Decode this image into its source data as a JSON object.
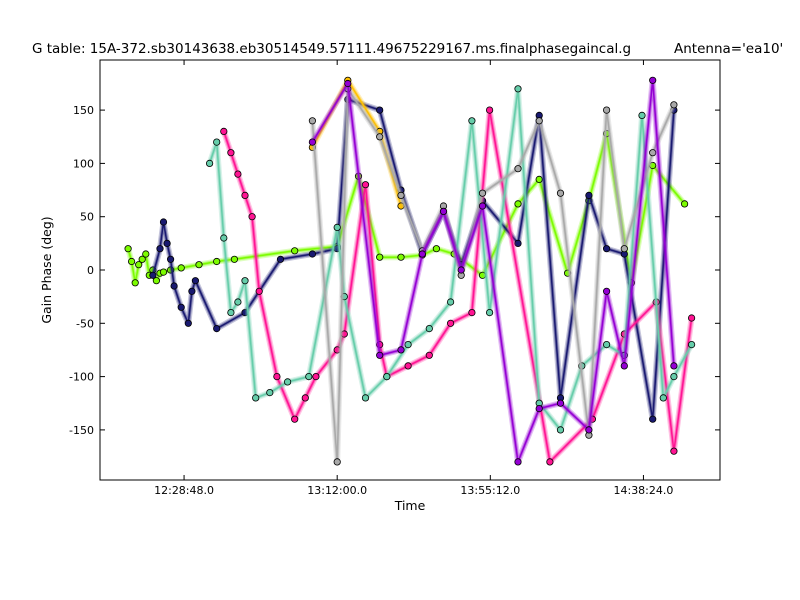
{
  "chart_data": {
    "type": "line",
    "title": "G table: 15A-372.sb30143638.eb30514549.57111.49675229167.ms.finalphasegaincal.g",
    "antenna_label": "Antenna='ea10'",
    "xlabel": "Time",
    "ylabel": "Gain Phase (deg)",
    "xlim": [
      "12:05:05.0",
      "15:00:00.0"
    ],
    "ylim": [
      -197,
      197
    ],
    "x_ticks": [
      "12:28:48.0",
      "13:12:00.0",
      "13:55:12.0",
      "14:38:24.0"
    ],
    "y_ticks": [
      -150,
      -100,
      -50,
      0,
      50,
      100,
      150
    ],
    "grid": false,
    "series": [
      {
        "color": "#7CFC00",
        "x": [
          "12:13:00",
          "12:14:00",
          "12:15:00",
          "12:16:00",
          "12:17:00",
          "12:18:00",
          "12:19:00",
          "12:20:00",
          "12:21:00",
          "12:22:00",
          "12:23:00",
          "12:25:00",
          "12:28:00",
          "12:33:00",
          "12:38:00",
          "12:43:00",
          "13:00:00",
          "13:12:00",
          "13:18:00",
          "13:24:00",
          "13:30:00",
          "13:36:00",
          "13:40:00",
          "13:45:00",
          "13:53:00",
          "14:03:00",
          "14:09:00",
          "14:17:00",
          "14:23:00",
          "14:28:00",
          "14:35:00",
          "14:41:00",
          "14:50:00"
        ],
        "y": [
          20,
          8,
          -12,
          5,
          10,
          15,
          -5,
          0,
          -10,
          -3,
          -2,
          0,
          2,
          5,
          8,
          10,
          18,
          22,
          88,
          12,
          12,
          14,
          20,
          15,
          -5,
          62,
          85,
          -3,
          65,
          128,
          -12,
          98,
          62
        ]
      },
      {
        "color": "#191970",
        "x": [
          "12:20:00",
          "12:22:00",
          "12:23:00",
          "12:24:00",
          "12:25:00",
          "12:26:00",
          "12:28:00",
          "12:30:00",
          "12:31:00",
          "12:32:00",
          "12:38:00",
          "12:46:00",
          "12:56:00",
          "13:05:00",
          "13:12:00",
          "13:15:00",
          "13:24:00",
          "13:30:00",
          "13:36:00",
          "13:42:00",
          "13:47:00",
          "13:53:00",
          "14:03:00",
          "14:09:00",
          "14:15:00",
          "14:23:00",
          "14:28:00",
          "14:33:00",
          "14:41:00",
          "14:47:00"
        ],
        "y": [
          -5,
          20,
          45,
          25,
          10,
          -15,
          -35,
          -50,
          -20,
          -10,
          -55,
          -40,
          10,
          15,
          20,
          160,
          150,
          75,
          15,
          55,
          5,
          65,
          25,
          145,
          -120,
          70,
          20,
          15,
          -140,
          150
        ]
      },
      {
        "color": "#FF1493",
        "x": [
          "12:40:00",
          "12:42:00",
          "12:44:00",
          "12:46:00",
          "12:48:00",
          "12:50:00",
          "12:55:00",
          "13:00:00",
          "13:03:00",
          "13:06:00",
          "13:12:00",
          "13:14:00",
          "13:20:00",
          "13:24:00",
          "13:26:00",
          "13:32:00",
          "13:38:00",
          "13:44:00",
          "13:50:00",
          "13:55:00",
          "14:12:00",
          "14:24:00",
          "14:33:00",
          "14:42:00",
          "14:47:00",
          "14:52:00"
        ],
        "y": [
          130,
          110,
          90,
          70,
          50,
          -20,
          -100,
          -140,
          -120,
          -100,
          -75,
          -60,
          80,
          -70,
          -100,
          -90,
          -80,
          -50,
          -40,
          150,
          -180,
          -140,
          -60,
          -30,
          -170,
          -45
        ]
      },
      {
        "color": "#66CDAA",
        "x": [
          "12:36:00",
          "12:38:00",
          "12:40:00",
          "12:42:00",
          "12:44:00",
          "12:46:00",
          "12:49:00",
          "12:53:00",
          "12:58:00",
          "13:04:00",
          "13:12:00",
          "13:14:00",
          "13:20:00",
          "13:26:00",
          "13:32:00",
          "13:38:00",
          "13:44:00",
          "13:50:00",
          "13:55:00",
          "14:03:00",
          "14:09:00",
          "14:15:00",
          "14:21:00",
          "14:28:00",
          "14:33:00",
          "14:38:00",
          "14:44:00",
          "14:47:00",
          "14:52:00"
        ],
        "y": [
          100,
          120,
          30,
          -40,
          -30,
          -10,
          -120,
          -115,
          -105,
          -100,
          40,
          -25,
          -120,
          -100,
          -70,
          -55,
          -30,
          140,
          -40,
          170,
          -125,
          -150,
          -90,
          -70,
          -80,
          145,
          -120,
          -100,
          -70
        ]
      },
      {
        "color": "#FFC000",
        "x": [
          "13:05:00",
          "13:15:00",
          "13:24:00",
          "13:30:00"
        ],
        "y": [
          115,
          178,
          130,
          60
        ]
      },
      {
        "color": "#A9A9A9",
        "x": [
          "13:05:00",
          "13:12:00",
          "13:15:00",
          "13:24:00",
          "13:30:00",
          "13:36:00",
          "13:42:00",
          "13:47:00",
          "13:53:00",
          "14:03:00",
          "14:09:00",
          "14:15:00",
          "14:23:00",
          "14:28:00",
          "14:33:00",
          "14:41:00",
          "14:47:00"
        ],
        "y": [
          140,
          -180,
          170,
          125,
          70,
          18,
          60,
          -5,
          72,
          95,
          140,
          72,
          -155,
          150,
          20,
          110,
          155
        ]
      },
      {
        "color": "#9400D3",
        "x": [
          "13:05:00",
          "13:15:00",
          "13:24:00",
          "13:30:00",
          "13:36:00",
          "13:42:00",
          "13:47:00",
          "13:53:00",
          "14:03:00",
          "14:09:00",
          "14:15:00",
          "14:23:00",
          "14:28:00",
          "14:33:00",
          "14:41:00",
          "14:47:00"
        ],
        "y": [
          120,
          175,
          -80,
          -75,
          15,
          55,
          0,
          60,
          -180,
          -130,
          -125,
          -150,
          -20,
          -90,
          178,
          -90
        ]
      }
    ]
  }
}
